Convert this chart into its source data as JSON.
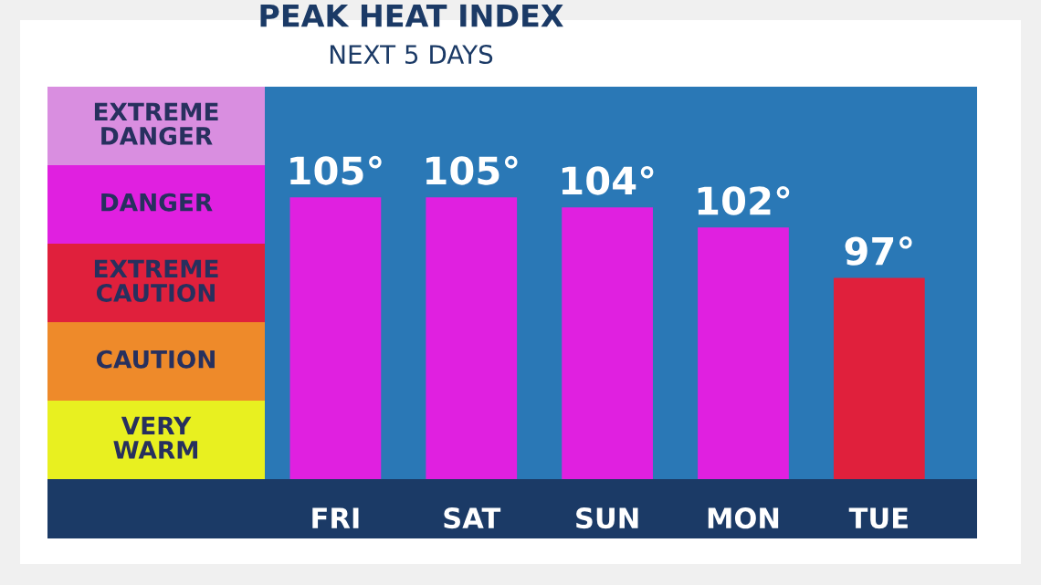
{
  "chart_data": [
    {
      "type": "other",
      "annotations": [
        "EXTREME\nDANGER",
        "DANGER",
        "EXTREME\nCAUTION",
        "CAUTION",
        "VERY\nWARM"
      ],
      "colors": [
        "#d98ee0",
        "#e020e0",
        "#e0203c",
        "#ee8a2a",
        "#e8f020"
      ]
    },
    {
      "type": "bar",
      "title": "PEAK HEAT INDEX",
      "subtitle": "NEXT 5 DAYS",
      "categories": [
        "FRI",
        "SAT",
        "SUN",
        "MON",
        "TUE"
      ],
      "values": [
        105,
        105,
        104,
        102,
        97
      ],
      "colors": [
        "#e020e0",
        "#e020e0",
        "#e020e0",
        "#e020e0",
        "#e0203c"
      ],
      "value_labels": [
        "105°",
        "105°",
        "104°",
        "102°",
        "97°"
      ],
      "ylim": [
        77,
        116
      ],
      "tick_labels": "x",
      "grid": false,
      "legend": false
    }
  ]
}
